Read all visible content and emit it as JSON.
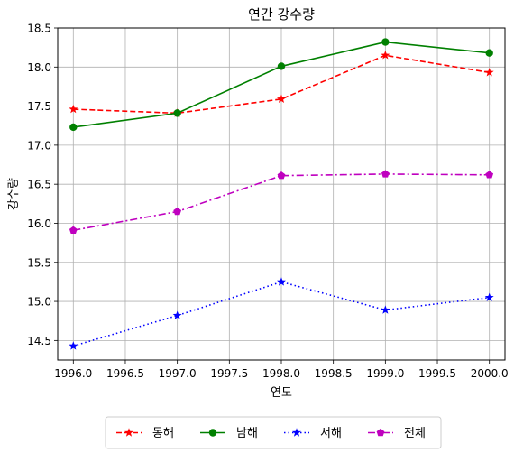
{
  "chart_data": {
    "type": "line",
    "title": "연간 강수량",
    "xlabel": "연도",
    "ylabel": "강수량",
    "xlim": [
      1995.85,
      2000.15
    ],
    "ylim": [
      14.25,
      18.5
    ],
    "xticks": [
      "1996.0",
      "1996.5",
      "1997.0",
      "1997.5",
      "1998.0",
      "1998.5",
      "1999.0",
      "1999.5",
      "2000.0"
    ],
    "yticks": [
      "14.5",
      "15.0",
      "15.5",
      "16.0",
      "16.5",
      "17.0",
      "17.5",
      "18.0",
      "18.5"
    ],
    "grid": true,
    "legend_position": "below",
    "x": [
      1996,
      1997,
      1998,
      1999,
      2000
    ],
    "series": [
      {
        "name": "동해",
        "values": [
          17.46,
          17.41,
          17.59,
          18.15,
          17.93
        ],
        "color": "#ff0000",
        "linestyle": "dashed",
        "marker": "star"
      },
      {
        "name": "남해",
        "values": [
          17.23,
          17.41,
          18.01,
          18.32,
          18.18
        ],
        "color": "#008000",
        "linestyle": "solid",
        "marker": "circle"
      },
      {
        "name": "서해",
        "values": [
          14.43,
          14.82,
          15.25,
          14.89,
          15.05
        ],
        "color": "#0000ff",
        "linestyle": "dotted",
        "marker": "star"
      },
      {
        "name": "전체",
        "values": [
          15.91,
          16.15,
          16.61,
          16.63,
          16.62
        ],
        "color": "#bf00bf",
        "linestyle": "dashdot",
        "marker": "pentagon"
      }
    ]
  }
}
